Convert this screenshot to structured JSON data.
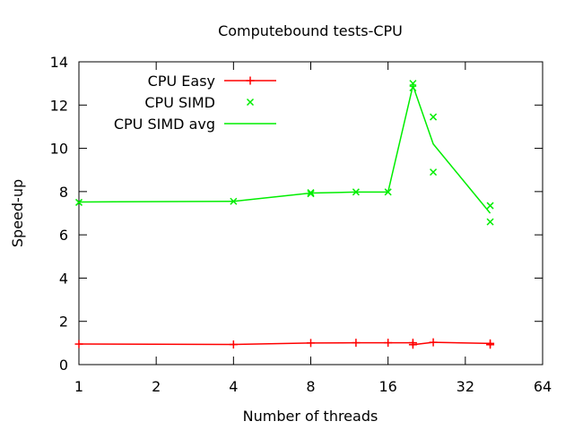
{
  "chart_data": {
    "type": "line",
    "title": "Computebound tests-CPU",
    "xlabel": "Number of threads",
    "ylabel": "Speed-up",
    "xscale": "log2",
    "xlim": [
      1,
      64
    ],
    "ylim": [
      0,
      14
    ],
    "xticks": [
      1,
      2,
      4,
      8,
      16,
      32,
      64
    ],
    "yticks": [
      0,
      2,
      4,
      6,
      8,
      10,
      12,
      14
    ],
    "grid": false,
    "legend_position": "top-left",
    "series": [
      {
        "name": "CPU Easy",
        "style": "linespoints-plus",
        "color": "#ff0000",
        "points": [
          [
            1,
            0.95
          ],
          [
            4,
            0.93
          ],
          [
            8,
            1.0
          ],
          [
            12,
            1.01
          ],
          [
            16,
            1.01
          ],
          [
            20,
            1.01
          ],
          [
            20,
            0.92
          ],
          [
            24,
            1.03
          ],
          [
            40,
            0.98
          ],
          [
            40,
            0.92
          ]
        ]
      },
      {
        "name": "CPU SIMD",
        "style": "points-x",
        "color": "#00ee00",
        "points": [
          [
            1,
            7.5
          ],
          [
            4,
            7.55
          ],
          [
            8,
            7.95
          ],
          [
            8,
            7.9
          ],
          [
            12,
            7.98
          ],
          [
            16,
            7.98
          ],
          [
            20,
            13.0
          ],
          [
            20,
            12.8
          ],
          [
            24,
            11.45
          ],
          [
            24,
            8.9
          ],
          [
            40,
            7.35
          ],
          [
            40,
            6.6
          ]
        ]
      },
      {
        "name": "CPU SIMD avg",
        "style": "line",
        "color": "#00ee00",
        "points": [
          [
            1,
            7.52
          ],
          [
            4,
            7.55
          ],
          [
            8,
            7.93
          ],
          [
            12,
            7.98
          ],
          [
            16,
            7.98
          ],
          [
            20,
            12.9
          ],
          [
            24,
            10.2
          ],
          [
            40,
            7.0
          ]
        ]
      }
    ]
  }
}
